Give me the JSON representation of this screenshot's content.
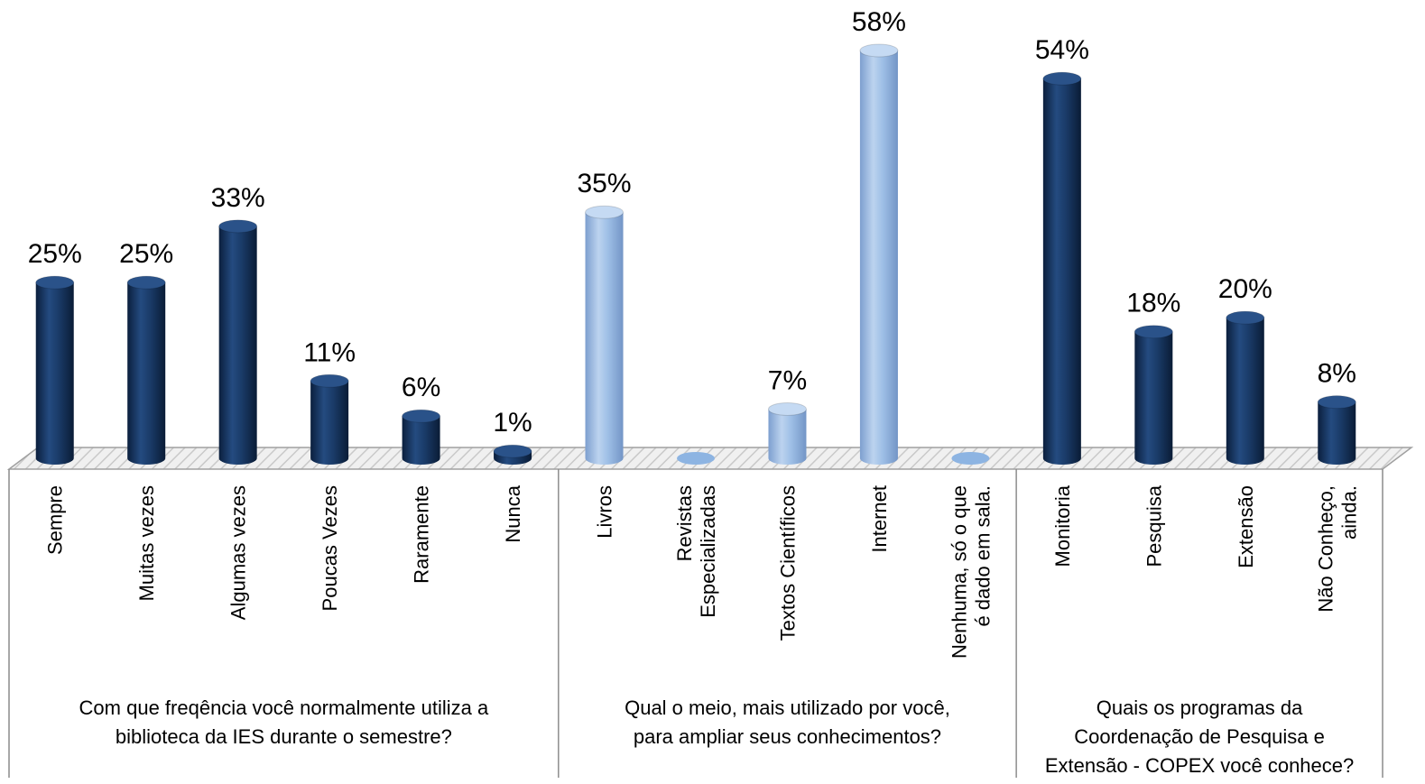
{
  "chart_data": {
    "type": "bar",
    "groups": [
      {
        "title_lines": [
          "Com que freqência você normalmente utiliza a",
          "biblioteca da IES durante o semestre?"
        ],
        "color": "#16355f",
        "bars": [
          {
            "label_lines": [
              "Sempre"
            ],
            "value": 25,
            "value_label": "25%"
          },
          {
            "label_lines": [
              "Muitas vezes"
            ],
            "value": 25,
            "value_label": "25%"
          },
          {
            "label_lines": [
              "Algumas vezes"
            ],
            "value": 33,
            "value_label": "33%"
          },
          {
            "label_lines": [
              "Poucas Vezes"
            ],
            "value": 11,
            "value_label": "11%"
          },
          {
            "label_lines": [
              "Raramente"
            ],
            "value": 6,
            "value_label": "6%"
          },
          {
            "label_lines": [
              "Nunca"
            ],
            "value": 1,
            "value_label": "1%"
          }
        ]
      },
      {
        "title_lines": [
          "Qual o meio, mais utilizado por você,",
          "para ampliar seus conhecimentos?"
        ],
        "color": "#8db4e2",
        "bars": [
          {
            "label_lines": [
              "Livros"
            ],
            "value": 35,
            "value_label": "35%"
          },
          {
            "label_lines": [
              "Revistas",
              "Especializadas"
            ],
            "value": 0,
            "value_label": ""
          },
          {
            "label_lines": [
              "Textos Científicos"
            ],
            "value": 7,
            "value_label": "7%"
          },
          {
            "label_lines": [
              "Internet"
            ],
            "value": 58,
            "value_label": "58%"
          },
          {
            "label_lines": [
              "Nenhuma, só o que",
              "é dado em sala."
            ],
            "value": 0,
            "value_label": ""
          }
        ]
      },
      {
        "title_lines": [
          "Quais os programas da",
          "Coordenação de Pesquisa e",
          "Extensão - COPEX você conhece?"
        ],
        "color": "#16355f",
        "bars": [
          {
            "label_lines": [
              "Monitoria"
            ],
            "value": 54,
            "value_label": "54%"
          },
          {
            "label_lines": [
              "Pesquisa"
            ],
            "value": 18,
            "value_label": "18%"
          },
          {
            "label_lines": [
              "Extensão"
            ],
            "value": 20,
            "value_label": "20%"
          },
          {
            "label_lines": [
              "Não Conheço,",
              "ainda."
            ],
            "value": 8,
            "value_label": "8%"
          }
        ]
      }
    ],
    "ylim": [
      0,
      60
    ],
    "grid": false,
    "legend": "none"
  }
}
